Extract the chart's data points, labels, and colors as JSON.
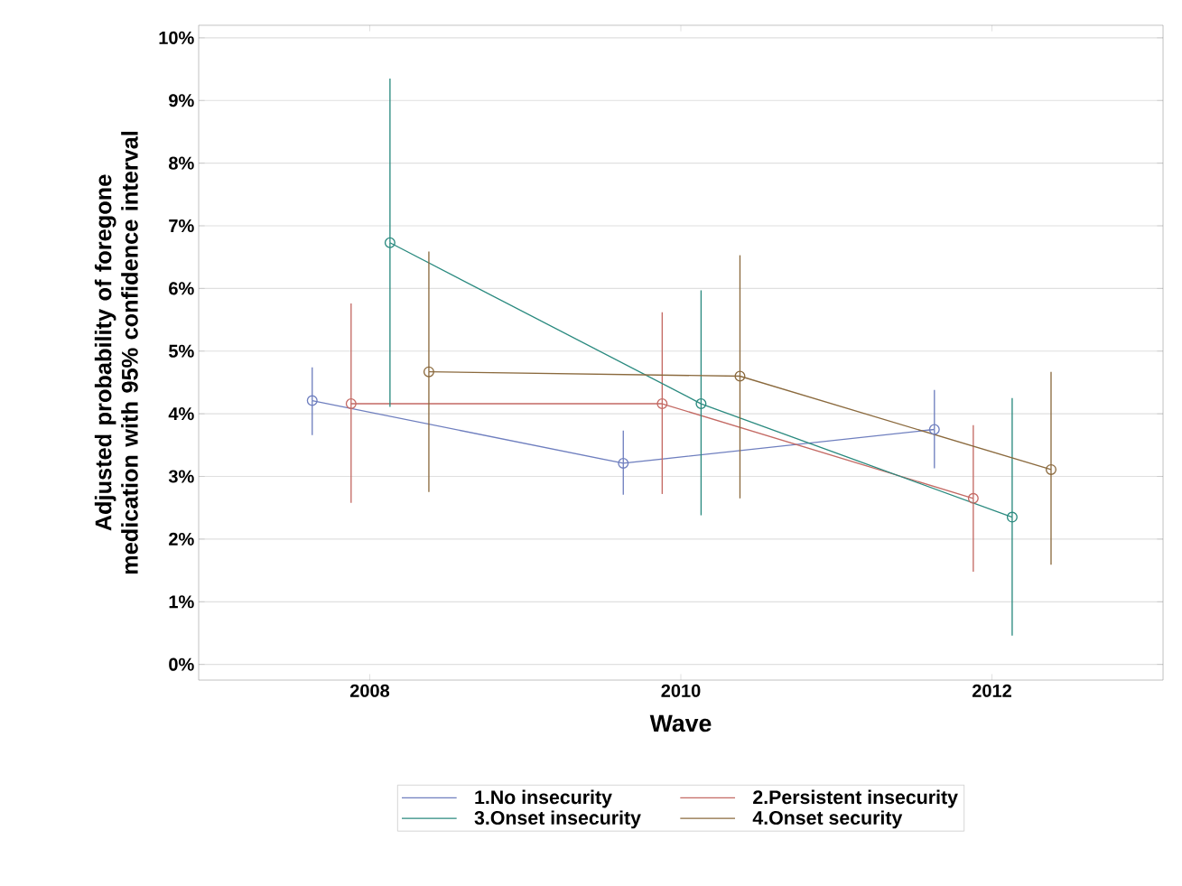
{
  "chart_data": {
    "type": "line",
    "xlabel": "Wave",
    "ylabel": "Adjusted probability of foregone medication with 95% confidence interval",
    "xlim": [
      2006.9,
      2013.1
    ],
    "xticks": [
      2008,
      2010,
      2012
    ],
    "ylim": [
      -0.25,
      10.2
    ],
    "yticks": [
      {
        "value": 0,
        "label": "0%"
      },
      {
        "value": 1,
        "label": "1%"
      },
      {
        "value": 2,
        "label": "2%"
      },
      {
        "value": 3,
        "label": "3%"
      },
      {
        "value": 4,
        "label": "4%"
      },
      {
        "value": 5,
        "label": "5%"
      },
      {
        "value": 6,
        "label": "6%"
      },
      {
        "value": 7,
        "label": "7%"
      },
      {
        "value": 8,
        "label": "8%"
      },
      {
        "value": 9,
        "label": "9%"
      },
      {
        "value": 10,
        "label": "10%"
      }
    ],
    "grid": "y",
    "legend": "bottom",
    "marker": "circle",
    "line_style": "solid",
    "series": [
      {
        "name": "1.No insecurity",
        "color": "#6f7fbf",
        "x": [
          2007.63,
          2009.63,
          2011.63
        ],
        "values": [
          4.21,
          3.21,
          3.75
        ],
        "errors": [
          [
            3.66,
            4.74
          ],
          [
            2.71,
            3.73
          ],
          [
            3.13,
            4.38
          ]
        ]
      },
      {
        "name": "2.Persistent insecurity",
        "color": "#c46a64",
        "x": [
          2007.88,
          2009.88,
          2011.88
        ],
        "values": [
          4.16,
          4.16,
          2.65
        ],
        "errors": [
          [
            2.58,
            5.76
          ],
          [
            2.72,
            5.62
          ],
          [
            1.48,
            3.82
          ]
        ]
      },
      {
        "name": "3.Onset insecurity",
        "color": "#2a8a7f",
        "x": [
          2008.13,
          2010.13,
          2012.13
        ],
        "values": [
          6.73,
          4.16,
          2.35
        ],
        "errors": [
          [
            4.11,
            9.35
          ],
          [
            2.38,
            5.97
          ],
          [
            0.46,
            4.25
          ]
        ]
      },
      {
        "name": "4.Onset security",
        "color": "#8b6a3e",
        "x": [
          2008.38,
          2010.38,
          2012.38
        ],
        "values": [
          4.67,
          4.6,
          3.11
        ],
        "errors": [
          [
            2.75,
            6.59
          ],
          [
            2.65,
            6.53
          ],
          [
            1.59,
            4.67
          ]
        ]
      }
    ]
  }
}
